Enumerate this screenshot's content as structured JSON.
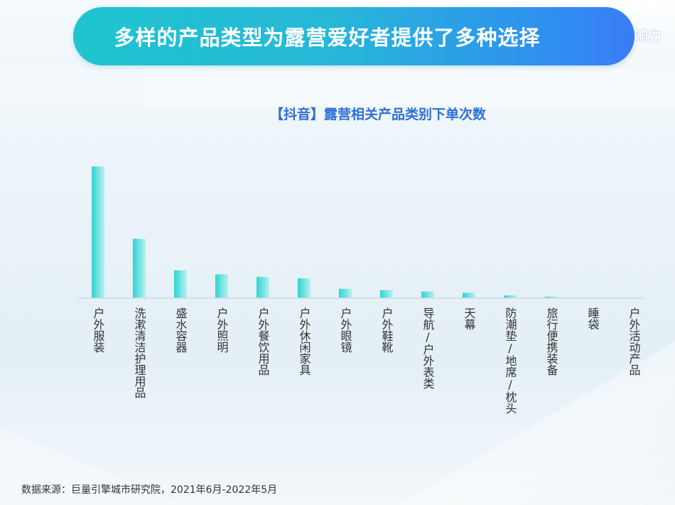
{
  "page": {
    "title": "多样的产品类型为露营爱好者提供了多种选择",
    "title_overflow": "响力",
    "source": "数据来源：巨量引擎城市研究院，2021年6月-2022年5月"
  },
  "colors": {
    "banner_start": "#1fc5cf",
    "banner_end": "#3a7cf5",
    "bar_start": "#2fd3d3",
    "bar_end": "#b8f1f1",
    "chart_title": "#2f6fd6",
    "axis": "#c9d4db"
  },
  "chart_data": {
    "type": "bar",
    "title": "【抖音】露营相关产品类别下单次数",
    "xlabel": "",
    "ylabel": "",
    "grid": false,
    "legend": "none",
    "ylim": [
      0,
      100
    ],
    "categories": [
      "户外服装",
      "洗漱清洁护理用品",
      "盛水容器",
      "户外照明",
      "户外餐饮用品",
      "户外休闲家具",
      "户外眼镜",
      "户外鞋靴",
      "导航/户外表类",
      "天幕",
      "防潮垫/地席/枕头",
      "旅行便携装备",
      "睡袋",
      "户外活动产品"
    ],
    "values": [
      100,
      45,
      21,
      18,
      16,
      15,
      7,
      6,
      5,
      4,
      2,
      1,
      0,
      0
    ]
  }
}
